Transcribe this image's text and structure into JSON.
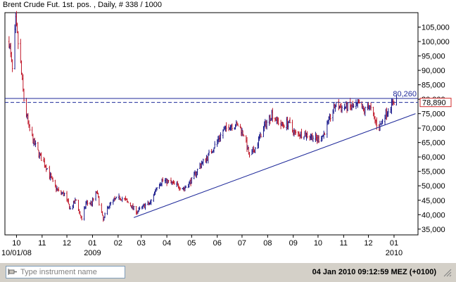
{
  "window": {
    "title": "Brent Crude Fut. 1st. pos. , Daily, # 338 / 1000"
  },
  "search": {
    "placeholder": "Type instrument name",
    "value": ""
  },
  "status": {
    "datetime": "04 Jan 2010 09:12:59  MEZ (+0100)"
  },
  "icons": {
    "search": "pin-icon",
    "status": "grip-icon"
  },
  "colors": {
    "up_candle": "#1a1a8c",
    "down_candle": "#c0182a",
    "line": "#1f2a9a",
    "current_box": "#d22b2b"
  },
  "chart_data": {
    "type": "candlestick",
    "title": "Brent Crude Fut. 1st. pos. , Daily, # 338 / 1000",
    "x_range": [
      "2008-10-01",
      "2010-01-04"
    ],
    "ylim": [
      33000,
      110000
    ],
    "y_ticks": [
      35000,
      40000,
      45000,
      50000,
      55000,
      60000,
      65000,
      70000,
      75000,
      80000,
      85000,
      90000,
      95000,
      100000,
      105000
    ],
    "y_tick_labels": [
      "35,000",
      "40,000",
      "45,000",
      "50,000",
      "55,000",
      "60,000",
      "65,000",
      "70,000",
      "75,000",
      "80,000",
      "85,000",
      "90,000",
      "95,000",
      "100,000",
      "105,000"
    ],
    "x_ticks": [
      {
        "date": "2008-10-01",
        "label": "10"
      },
      {
        "date": "2008-11-01",
        "label": "11"
      },
      {
        "date": "2008-12-01",
        "label": "12"
      },
      {
        "date": "2009-01-01",
        "label": "01"
      },
      {
        "date": "2009-02-01",
        "label": "02"
      },
      {
        "date": "2009-03-01",
        "label": "03"
      },
      {
        "date": "2009-04-01",
        "label": "04"
      },
      {
        "date": "2009-05-01",
        "label": "05"
      },
      {
        "date": "2009-06-01",
        "label": "06"
      },
      {
        "date": "2009-07-01",
        "label": "07"
      },
      {
        "date": "2009-08-01",
        "label": "08"
      },
      {
        "date": "2009-09-01",
        "label": "09"
      },
      {
        "date": "2009-10-01",
        "label": "10"
      },
      {
        "date": "2009-11-01",
        "label": "11"
      },
      {
        "date": "2009-12-01",
        "label": "12"
      },
      {
        "date": "2010-01-01",
        "label": "01"
      }
    ],
    "x_sublabels": [
      {
        "date": "2008-10-01",
        "label": "10/01/08"
      },
      {
        "date": "2009-01-01",
        "label": "2009"
      },
      {
        "date": "2010-01-01",
        "label": "2010"
      }
    ],
    "price_path": [
      [
        "2008-09-22",
        100000
      ],
      [
        "2008-09-26",
        90000
      ],
      [
        "2008-09-30",
        107000
      ],
      [
        "2008-10-06",
        92000
      ],
      [
        "2008-10-10",
        80000
      ],
      [
        "2008-10-16",
        70000
      ],
      [
        "2008-10-22",
        65000
      ],
      [
        "2008-10-30",
        60000
      ],
      [
        "2008-11-07",
        56000
      ],
      [
        "2008-11-14",
        51000
      ],
      [
        "2008-11-21",
        48000
      ],
      [
        "2008-11-28",
        47000
      ],
      [
        "2008-12-05",
        42000
      ],
      [
        "2008-12-12",
        45000
      ],
      [
        "2008-12-19",
        38000
      ],
      [
        "2008-12-24",
        44000
      ],
      [
        "2008-12-31",
        44000
      ],
      [
        "2009-01-06",
        48000
      ],
      [
        "2009-01-14",
        38000
      ],
      [
        "2009-01-20",
        43000
      ],
      [
        "2009-01-27",
        45000
      ],
      [
        "2009-02-03",
        46000
      ],
      [
        "2009-02-10",
        45000
      ],
      [
        "2009-02-17",
        43000
      ],
      [
        "2009-02-24",
        41000
      ],
      [
        "2009-03-04",
        43000
      ],
      [
        "2009-03-12",
        44000
      ],
      [
        "2009-03-20",
        50000
      ],
      [
        "2009-03-27",
        52000
      ],
      [
        "2009-04-06",
        51000
      ],
      [
        "2009-04-15",
        50000
      ],
      [
        "2009-04-22",
        49000
      ],
      [
        "2009-05-01",
        52000
      ],
      [
        "2009-05-11",
        57000
      ],
      [
        "2009-05-20",
        60000
      ],
      [
        "2009-05-29",
        64000
      ],
      [
        "2009-06-08",
        69000
      ],
      [
        "2009-06-17",
        71000
      ],
      [
        "2009-06-26",
        71000
      ],
      [
        "2009-07-03",
        68000
      ],
      [
        "2009-07-10",
        60000
      ],
      [
        "2009-07-17",
        63000
      ],
      [
        "2009-07-27",
        70000
      ],
      [
        "2009-08-06",
        75000
      ],
      [
        "2009-08-17",
        71000
      ],
      [
        "2009-08-26",
        72000
      ],
      [
        "2009-09-03",
        68000
      ],
      [
        "2009-09-14",
        68000
      ],
      [
        "2009-09-24",
        67000
      ],
      [
        "2009-10-01",
        66000
      ],
      [
        "2009-10-08",
        68000
      ],
      [
        "2009-10-16",
        74000
      ],
      [
        "2009-10-22",
        78000
      ],
      [
        "2009-10-29",
        77000
      ],
      [
        "2009-11-05",
        77500
      ],
      [
        "2009-11-12",
        77000
      ],
      [
        "2009-11-19",
        78000
      ],
      [
        "2009-11-26",
        76000
      ],
      [
        "2009-12-02",
        78000
      ],
      [
        "2009-12-08",
        73000
      ],
      [
        "2009-12-14",
        70000
      ],
      [
        "2009-12-18",
        73000
      ],
      [
        "2009-12-24",
        76000
      ],
      [
        "2009-12-31",
        79000
      ],
      [
        "2010-01-04",
        80000
      ]
    ],
    "trendline": {
      "start": [
        "2009-02-20",
        39000
      ],
      "end": [
        "2010-01-27",
        75000
      ]
    },
    "resistance": {
      "value": 80260,
      "label": "80,260"
    },
    "current": {
      "value": 78890,
      "label": "78,890"
    }
  }
}
